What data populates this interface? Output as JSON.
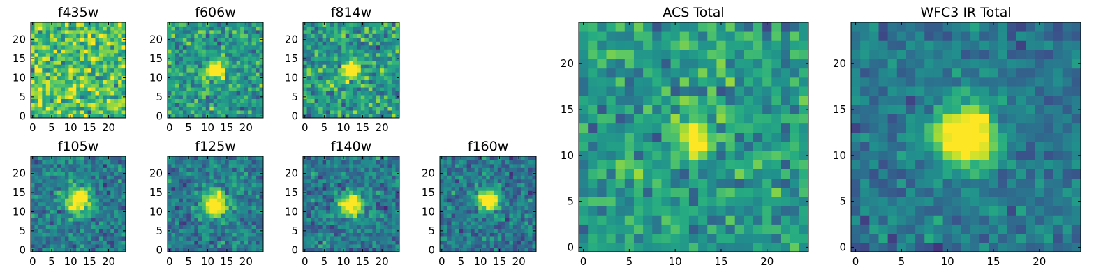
{
  "figure": {
    "description_none": true
  },
  "chart_data": [
    {
      "type": "heatmap",
      "title": "f435w",
      "grid_size": 25,
      "xlim": [
        -0.5,
        24.5
      ],
      "ylim": [
        -0.5,
        24.5
      ],
      "xticks": [
        0,
        5,
        10,
        15,
        20
      ],
      "yticks": [
        0,
        5,
        10,
        15,
        20
      ],
      "colormap": "viridis",
      "peak": null,
      "noise_mean": 0.72,
      "noise_spread": 0.28,
      "seed": 11
    },
    {
      "type": "heatmap",
      "title": "f606w",
      "grid_size": 25,
      "xlim": [
        -0.5,
        24.5
      ],
      "ylim": [
        -0.5,
        24.5
      ],
      "xticks": [
        0,
        5,
        10,
        15,
        20
      ],
      "yticks": [
        0,
        5,
        10,
        15,
        20
      ],
      "colormap": "viridis",
      "peak": [
        12,
        12
      ],
      "peak_sigma": 1.6,
      "peak_amp": 0.45,
      "noise_mean": 0.55,
      "noise_spread": 0.22,
      "seed": 23
    },
    {
      "type": "heatmap",
      "title": "f814w",
      "grid_size": 25,
      "xlim": [
        -0.5,
        24.5
      ],
      "ylim": [
        -0.5,
        24.5
      ],
      "xticks": [
        0,
        5,
        10,
        15,
        20
      ],
      "yticks": [
        0,
        5,
        10,
        15,
        20
      ],
      "colormap": "viridis",
      "peak": [
        12,
        12
      ],
      "peak_sigma": 1.6,
      "peak_amp": 0.45,
      "noise_mean": 0.55,
      "noise_spread": 0.24,
      "seed": 37
    },
    {
      "type": "heatmap",
      "title": "f105w",
      "grid_size": 25,
      "xlim": [
        -0.5,
        24.5
      ],
      "ylim": [
        -0.5,
        24.5
      ],
      "xticks": [
        0,
        5,
        10,
        15,
        20
      ],
      "yticks": [
        0,
        5,
        10,
        15,
        20
      ],
      "colormap": "viridis",
      "peak": [
        12,
        13
      ],
      "peak_sigma": 2.2,
      "peak_amp": 0.55,
      "noise_mean": 0.42,
      "noise_spread": 0.18,
      "seed": 41
    },
    {
      "type": "heatmap",
      "title": "f125w",
      "grid_size": 25,
      "xlim": [
        -0.5,
        24.5
      ],
      "ylim": [
        -0.5,
        24.5
      ],
      "xticks": [
        0,
        5,
        10,
        15,
        20
      ],
      "yticks": [
        0,
        5,
        10,
        15,
        20
      ],
      "colormap": "viridis",
      "peak": [
        12,
        12
      ],
      "peak_sigma": 2.2,
      "peak_amp": 0.55,
      "noise_mean": 0.42,
      "noise_spread": 0.18,
      "seed": 53
    },
    {
      "type": "heatmap",
      "title": "f140w",
      "grid_size": 25,
      "xlim": [
        -0.5,
        24.5
      ],
      "ylim": [
        -0.5,
        24.5
      ],
      "xticks": [
        0,
        5,
        10,
        15,
        20
      ],
      "yticks": [
        0,
        5,
        10,
        15,
        20
      ],
      "colormap": "viridis",
      "peak": [
        12,
        12
      ],
      "peak_sigma": 2.0,
      "peak_amp": 0.55,
      "noise_mean": 0.42,
      "noise_spread": 0.18,
      "seed": 67
    },
    {
      "type": "heatmap",
      "title": "f160w",
      "grid_size": 25,
      "xlim": [
        -0.5,
        24.5
      ],
      "ylim": [
        -0.5,
        24.5
      ],
      "xticks": [
        0,
        5,
        10,
        15,
        20
      ],
      "yticks": [
        0,
        5,
        10,
        15,
        20
      ],
      "colormap": "viridis",
      "peak": [
        12,
        13
      ],
      "peak_sigma": 1.8,
      "peak_amp": 0.6,
      "noise_mean": 0.4,
      "noise_spread": 0.18,
      "seed": 79
    },
    {
      "type": "heatmap",
      "title": "ACS Total",
      "grid_size": 25,
      "xlim": [
        -0.5,
        24.5
      ],
      "ylim": [
        -0.5,
        24.5
      ],
      "xticks": [
        0,
        5,
        10,
        15,
        20
      ],
      "yticks": [
        0,
        5,
        10,
        15,
        20
      ],
      "colormap": "viridis",
      "peak": [
        12,
        12
      ],
      "peak_sigma": 1.4,
      "peak_amp": 0.4,
      "noise_mean": 0.55,
      "noise_spread": 0.2,
      "seed": 89
    },
    {
      "type": "heatmap",
      "title": "WFC3 IR Total",
      "grid_size": 25,
      "xlim": [
        -0.5,
        24.5
      ],
      "ylim": [
        -0.5,
        24.5
      ],
      "xticks": [
        0,
        5,
        10,
        15,
        20
      ],
      "yticks": [
        0,
        5,
        10,
        15,
        20
      ],
      "colormap": "viridis",
      "peak": [
        12,
        12
      ],
      "peak_sigma": 2.2,
      "peak_amp": 0.6,
      "noise_mean": 0.4,
      "noise_spread": 0.14,
      "seed": 97
    }
  ]
}
